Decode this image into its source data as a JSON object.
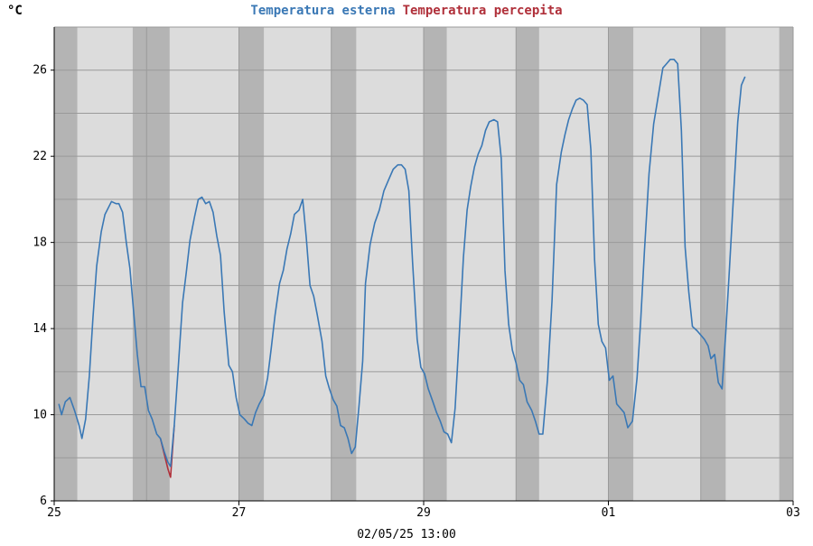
{
  "chart_data": {
    "type": "line",
    "unit_label": "°C",
    "legend": [
      {
        "name": "Temperatura esterna",
        "color": "#3a78b5"
      },
      {
        "name": "Temperatura percepita",
        "color": "#b0303a"
      }
    ],
    "footer": "02/05/25 13:00",
    "ylim": [
      6,
      28
    ],
    "yticks": [
      6,
      10,
      14,
      18,
      22,
      26
    ],
    "xlim": [
      0,
      8
    ],
    "xticks": [
      {
        "x": 0,
        "label": "25"
      },
      {
        "x": 2,
        "label": "27"
      },
      {
        "x": 4,
        "label": "29"
      },
      {
        "x": 6,
        "label": "01"
      },
      {
        "x": 8,
        "label": "03"
      }
    ],
    "grid": true,
    "colors": {
      "plot_bg": "#dcdcdc",
      "night_band": "#b4b4b4",
      "grid": "#9a9a9a"
    },
    "night_bands": [
      [
        0,
        0.25
      ],
      [
        0.85,
        1.25
      ],
      [
        2.0,
        2.27
      ],
      [
        3.0,
        3.27
      ],
      [
        4.0,
        4.25
      ],
      [
        5.0,
        5.25
      ],
      [
        6.0,
        6.27
      ],
      [
        7.0,
        7.27
      ],
      [
        7.85,
        8.0
      ]
    ],
    "series": [
      {
        "name": "Temperatura esterna",
        "color": "#3a78b5",
        "points": [
          [
            0.05,
            10.5
          ],
          [
            0.08,
            10.0
          ],
          [
            0.12,
            10.6
          ],
          [
            0.17,
            10.8
          ],
          [
            0.22,
            10.2
          ],
          [
            0.27,
            9.5
          ],
          [
            0.3,
            8.9
          ],
          [
            0.34,
            9.8
          ],
          [
            0.38,
            11.8
          ],
          [
            0.42,
            14.5
          ],
          [
            0.46,
            16.9
          ],
          [
            0.51,
            18.5
          ],
          [
            0.55,
            19.3
          ],
          [
            0.62,
            19.9
          ],
          [
            0.67,
            19.8
          ],
          [
            0.7,
            19.8
          ],
          [
            0.74,
            19.4
          ],
          [
            0.78,
            18.0
          ],
          [
            0.82,
            16.8
          ],
          [
            0.86,
            14.8
          ],
          [
            0.9,
            12.8
          ],
          [
            0.94,
            11.3
          ],
          [
            0.98,
            11.3
          ],
          [
            1.02,
            10.2
          ],
          [
            1.06,
            9.8
          ],
          [
            1.11,
            9.1
          ],
          [
            1.15,
            8.9
          ],
          [
            1.19,
            8.3
          ],
          [
            1.23,
            7.8
          ],
          [
            1.26,
            7.6
          ],
          [
            1.3,
            9.5
          ],
          [
            1.34,
            12.0
          ],
          [
            1.39,
            15.2
          ],
          [
            1.43,
            16.6
          ],
          [
            1.47,
            18.1
          ],
          [
            1.52,
            19.2
          ],
          [
            1.56,
            20.0
          ],
          [
            1.6,
            20.1
          ],
          [
            1.64,
            19.8
          ],
          [
            1.68,
            19.9
          ],
          [
            1.72,
            19.4
          ],
          [
            1.76,
            18.3
          ],
          [
            1.8,
            17.4
          ],
          [
            1.84,
            14.8
          ],
          [
            1.89,
            12.3
          ],
          [
            1.93,
            12.0
          ],
          [
            1.97,
            10.8
          ],
          [
            2.01,
            10.0
          ],
          [
            2.06,
            9.8
          ],
          [
            2.1,
            9.6
          ],
          [
            2.14,
            9.5
          ],
          [
            2.18,
            10.1
          ],
          [
            2.22,
            10.5
          ],
          [
            2.27,
            10.9
          ],
          [
            2.31,
            11.7
          ],
          [
            2.35,
            13.1
          ],
          [
            2.39,
            14.6
          ],
          [
            2.44,
            16.1
          ],
          [
            2.48,
            16.7
          ],
          [
            2.52,
            17.7
          ],
          [
            2.56,
            18.4
          ],
          [
            2.6,
            19.3
          ],
          [
            2.65,
            19.5
          ],
          [
            2.69,
            20.0
          ],
          [
            2.73,
            18.2
          ],
          [
            2.77,
            16.0
          ],
          [
            2.81,
            15.5
          ],
          [
            2.85,
            14.6
          ],
          [
            2.9,
            13.4
          ],
          [
            2.94,
            11.8
          ],
          [
            2.98,
            11.2
          ],
          [
            3.02,
            10.7
          ],
          [
            3.06,
            10.4
          ],
          [
            3.1,
            9.5
          ],
          [
            3.14,
            9.4
          ],
          [
            3.18,
            8.9
          ],
          [
            3.22,
            8.2
          ],
          [
            3.26,
            8.5
          ],
          [
            3.3,
            10.4
          ],
          [
            3.34,
            12.5
          ],
          [
            3.37,
            16.1
          ],
          [
            3.42,
            17.9
          ],
          [
            3.47,
            18.9
          ],
          [
            3.52,
            19.5
          ],
          [
            3.57,
            20.4
          ],
          [
            3.62,
            20.9
          ],
          [
            3.67,
            21.4
          ],
          [
            3.72,
            21.6
          ],
          [
            3.76,
            21.6
          ],
          [
            3.8,
            21.4
          ],
          [
            3.84,
            20.4
          ],
          [
            3.88,
            17.1
          ],
          [
            3.93,
            13.5
          ],
          [
            3.97,
            12.2
          ],
          [
            4.01,
            11.9
          ],
          [
            4.05,
            11.2
          ],
          [
            4.1,
            10.6
          ],
          [
            4.14,
            10.1
          ],
          [
            4.18,
            9.7
          ],
          [
            4.22,
            9.2
          ],
          [
            4.26,
            9.1
          ],
          [
            4.3,
            8.7
          ],
          [
            4.34,
            10.3
          ],
          [
            4.38,
            13.3
          ],
          [
            4.43,
            17.3
          ],
          [
            4.47,
            19.5
          ],
          [
            4.51,
            20.6
          ],
          [
            4.55,
            21.5
          ],
          [
            4.59,
            22.1
          ],
          [
            4.63,
            22.5
          ],
          [
            4.67,
            23.2
          ],
          [
            4.71,
            23.6
          ],
          [
            4.76,
            23.7
          ],
          [
            4.8,
            23.6
          ],
          [
            4.84,
            21.9
          ],
          [
            4.88,
            16.7
          ],
          [
            4.92,
            14.2
          ],
          [
            4.96,
            13.0
          ],
          [
            5.0,
            12.4
          ],
          [
            5.04,
            11.6
          ],
          [
            5.08,
            11.4
          ],
          [
            5.12,
            10.6
          ],
          [
            5.17,
            10.2
          ],
          [
            5.21,
            9.7
          ],
          [
            5.25,
            9.1
          ],
          [
            5.29,
            9.1
          ],
          [
            5.34,
            11.6
          ],
          [
            5.39,
            15.3
          ],
          [
            5.44,
            20.7
          ],
          [
            5.49,
            22.2
          ],
          [
            5.53,
            23.0
          ],
          [
            5.57,
            23.7
          ],
          [
            5.61,
            24.2
          ],
          [
            5.65,
            24.6
          ],
          [
            5.69,
            24.7
          ],
          [
            5.73,
            24.6
          ],
          [
            5.77,
            24.4
          ],
          [
            5.81,
            22.3
          ],
          [
            5.85,
            17.2
          ],
          [
            5.89,
            14.2
          ],
          [
            5.93,
            13.4
          ],
          [
            5.97,
            13.1
          ],
          [
            6.01,
            11.6
          ],
          [
            6.05,
            11.8
          ],
          [
            6.09,
            10.5
          ],
          [
            6.13,
            10.3
          ],
          [
            6.17,
            10.1
          ],
          [
            6.21,
            9.4
          ],
          [
            6.26,
            9.7
          ],
          [
            6.31,
            11.7
          ],
          [
            6.35,
            14.4
          ],
          [
            6.39,
            17.6
          ],
          [
            6.44,
            21.2
          ],
          [
            6.49,
            23.5
          ],
          [
            6.54,
            24.8
          ],
          [
            6.59,
            26.1
          ],
          [
            6.63,
            26.3
          ],
          [
            6.67,
            26.5
          ],
          [
            6.71,
            26.5
          ],
          [
            6.75,
            26.3
          ],
          [
            6.79,
            23.2
          ],
          [
            6.83,
            17.8
          ],
          [
            6.87,
            15.7
          ],
          [
            6.91,
            14.1
          ],
          [
            6.96,
            13.9
          ],
          [
            7.0,
            13.7
          ],
          [
            7.04,
            13.5
          ],
          [
            7.08,
            13.2
          ],
          [
            7.11,
            12.6
          ],
          [
            7.15,
            12.8
          ],
          [
            7.19,
            11.5
          ],
          [
            7.23,
            11.2
          ],
          [
            7.27,
            13.8
          ],
          [
            7.31,
            16.7
          ],
          [
            7.36,
            20.6
          ],
          [
            7.4,
            23.6
          ],
          [
            7.44,
            25.3
          ],
          [
            7.48,
            25.7
          ]
        ]
      },
      {
        "name": "Temperatura percepita",
        "color": "#b0303a",
        "points": [
          [
            1.15,
            8.9
          ],
          [
            1.19,
            8.2
          ],
          [
            1.23,
            7.5
          ],
          [
            1.26,
            7.1
          ],
          [
            1.3,
            9.5
          ]
        ]
      }
    ]
  }
}
